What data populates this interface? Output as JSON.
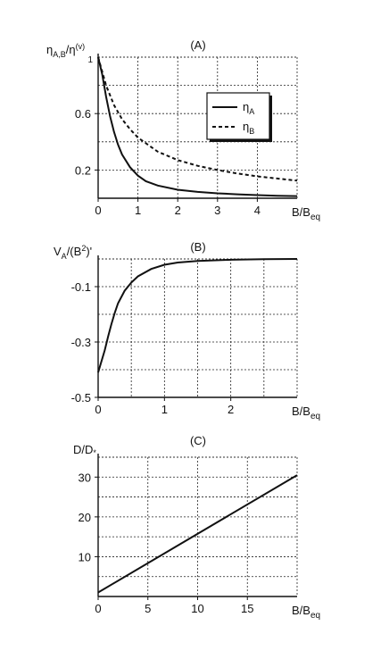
{
  "chart_data": [
    {
      "type": "line",
      "title": "(A)",
      "ylabel_main": "η",
      "ylabel_sub": "A,B",
      "ylabel_mid": "/η",
      "ylabel_sup": "(v)",
      "xlabel_main": "B/B",
      "xlabel_sub": "eq",
      "xlim": [
        0,
        5
      ],
      "ylim": [
        0,
        1
      ],
      "xticks": [
        0,
        1,
        2,
        3,
        4
      ],
      "xtick_labels": [
        "0",
        "1",
        "2",
        "3",
        "4"
      ],
      "yticks": [
        0.2,
        0.6
      ],
      "ytick_labels": [
        "0.2",
        "0.6"
      ],
      "extra_label": "1",
      "grid": true,
      "legend": {
        "placement": "top-right",
        "items": [
          {
            "main": "η",
            "sub": "A"
          },
          {
            "main": "η",
            "sub": "B"
          }
        ]
      },
      "series": [
        {
          "name": "ηA",
          "style": "solid",
          "x": [
            0,
            0.1,
            0.2,
            0.3,
            0.4,
            0.5,
            0.6,
            0.8,
            1.0,
            1.2,
            1.5,
            2.0,
            2.5,
            3.0,
            3.5,
            4.0,
            4.5,
            5.0
          ],
          "y": [
            1.0,
            0.88,
            0.72,
            0.58,
            0.47,
            0.38,
            0.31,
            0.22,
            0.16,
            0.12,
            0.09,
            0.06,
            0.045,
            0.035,
            0.028,
            0.022,
            0.018,
            0.015
          ]
        },
        {
          "name": "ηB",
          "style": "dashed",
          "x": [
            0,
            0.2,
            0.4,
            0.6,
            0.8,
            1.0,
            1.5,
            2.0,
            2.5,
            3.0,
            3.5,
            4.0,
            4.5,
            5.0
          ],
          "y": [
            1.0,
            0.8,
            0.66,
            0.56,
            0.49,
            0.43,
            0.33,
            0.27,
            0.23,
            0.2,
            0.175,
            0.155,
            0.14,
            0.125
          ]
        }
      ]
    },
    {
      "type": "line",
      "title": "(B)",
      "ylabel_main": "V",
      "ylabel_sub": "A",
      "ylabel_mid": "/(B",
      "ylabel_sup": "2",
      "ylabel_end": ")'",
      "xlabel_main": "B/B",
      "xlabel_sub": "eq",
      "xlim": [
        0,
        3
      ],
      "ylim": [
        -0.5,
        0
      ],
      "xticks": [
        0,
        1,
        2
      ],
      "xtick_labels": [
        "0",
        "1",
        "2"
      ],
      "yticks": [
        -0.5,
        -0.3,
        -0.1
      ],
      "ytick_labels": [
        "-0.5",
        "-0.3",
        "-0.1"
      ],
      "grid": true,
      "series": [
        {
          "name": "VA",
          "style": "solid",
          "x": [
            0,
            0.05,
            0.1,
            0.15,
            0.2,
            0.25,
            0.3,
            0.4,
            0.5,
            0.6,
            0.8,
            1.0,
            1.2,
            1.5,
            2.0,
            2.5,
            3.0
          ],
          "y": [
            -0.41,
            -0.37,
            -0.33,
            -0.28,
            -0.235,
            -0.195,
            -0.16,
            -0.115,
            -0.085,
            -0.063,
            -0.036,
            -0.021,
            -0.013,
            -0.007,
            -0.003,
            -0.001,
            0.0
          ]
        }
      ]
    },
    {
      "type": "line",
      "title": "(C)",
      "ylabel_main": "D/D",
      "ylabel_sub": "*",
      "xlabel_main": "B/B",
      "xlabel_sub": "eq",
      "xlim": [
        0,
        20
      ],
      "ylim": [
        0,
        35
      ],
      "xticks": [
        0,
        5,
        10,
        15
      ],
      "xtick_labels": [
        "0",
        "5",
        "10",
        "15"
      ],
      "yticks": [
        10,
        20,
        30
      ],
      "ytick_labels": [
        "10",
        "20",
        "30"
      ],
      "grid": true,
      "series": [
        {
          "name": "D",
          "style": "solid",
          "x": [
            0,
            20
          ],
          "y": [
            1.0,
            30.5
          ]
        }
      ]
    }
  ]
}
